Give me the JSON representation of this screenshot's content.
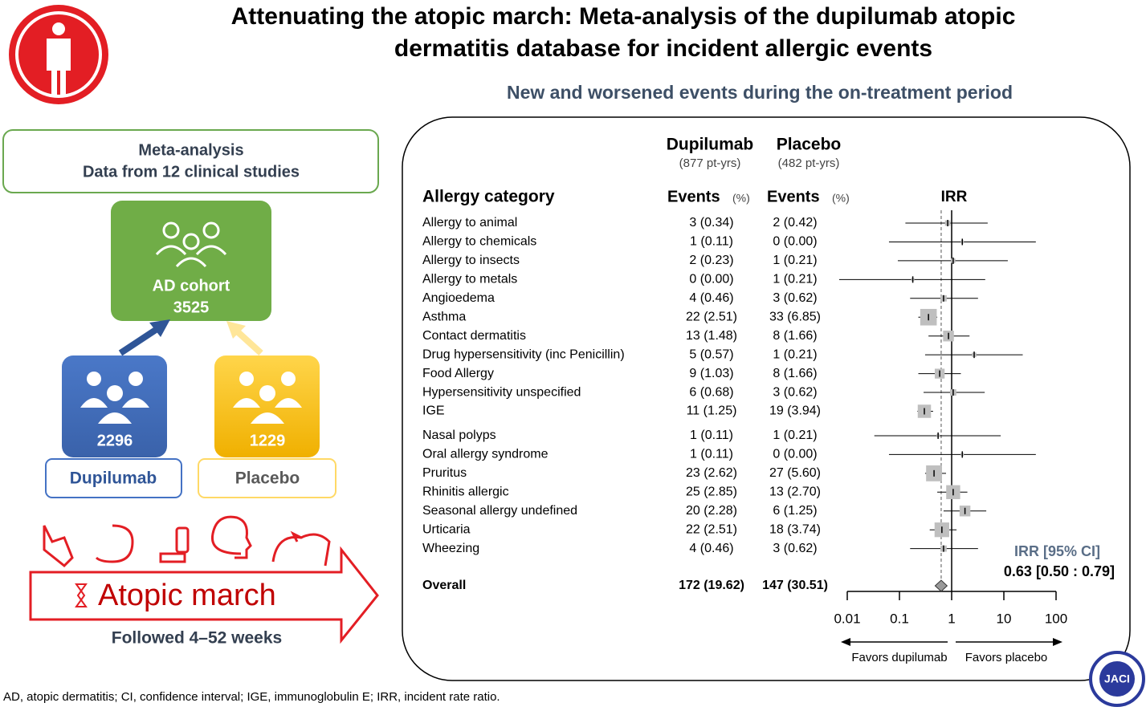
{
  "title": [
    "Attenuating the atopic march: Meta-analysis of the dupilumab atopic",
    "dermatitis database for incident allergic events"
  ],
  "left": {
    "meta_box": [
      "Meta-analysis",
      "Data from 12 clinical studies"
    ],
    "cohort_label": "AD cohort",
    "cohort_n": "3525",
    "dupilumab_n": "2296",
    "placebo_n": "1229",
    "dupilumab_label": "Dupilumab",
    "placebo_label": "Placebo",
    "march_label": "Atopic march",
    "followed": "Followed 4–52 weeks"
  },
  "chart_data": {
    "type": "forest",
    "subtitle": "New and worsened events during the on-treatment period",
    "headers": {
      "dupilumab": "Dupilumab",
      "dupilumab_py": "(877 pt-yrs)",
      "placebo": "Placebo",
      "placebo_py": "(482 pt-yrs)",
      "category": "Allergy category",
      "events": "Events",
      "pct": "(%)",
      "irr": "IRR"
    },
    "categories": [
      "Allergy to animal",
      "Allergy to chemicals",
      "Allergy to insects",
      "Allergy to metals",
      "Angioedema",
      "Asthma",
      "Contact dermatitis",
      "Drug hypersensitivity (inc Penicillin)",
      "Food Allergy",
      "Hypersensitivity unspecified",
      "IGE",
      "Nasal polyps",
      "Oral allergy syndrome",
      "Pruritus",
      "Rhinitis allergic",
      "Seasonal allergy undefined",
      "Urticaria",
      "Wheezing"
    ],
    "dupilumab_events": [
      "3 (0.34)",
      "1 (0.11)",
      "2 (0.23)",
      "0 (0.00)",
      "4 (0.46)",
      "22 (2.51)",
      "13 (1.48)",
      "5 (0.57)",
      "9 (1.03)",
      "6 (0.68)",
      "11 (1.25)",
      "1 (0.11)",
      "1 (0.11)",
      "23 (2.62)",
      "25 (2.85)",
      "20 (2.28)",
      "22 (2.51)",
      "4 (0.46)"
    ],
    "placebo_events": [
      "2 (0.42)",
      "0 (0.00)",
      "1 (0.21)",
      "1 (0.21)",
      "3 (0.62)",
      "33 (6.85)",
      "8 (1.66)",
      "1 (0.21)",
      "8 (1.66)",
      "3 (0.62)",
      "19 (3.94)",
      "1 (0.21)",
      "0 (0.00)",
      "27 (5.60)",
      "13 (2.70)",
      "6 (1.25)",
      "18 (3.74)",
      "3 (0.62)"
    ],
    "values": [
      0.84,
      1.6,
      1.07,
      0.18,
      0.7,
      0.36,
      0.87,
      2.7,
      0.59,
      1.07,
      0.3,
      0.55,
      1.6,
      0.46,
      1.07,
      1.8,
      0.65,
      0.7
    ],
    "ci_low": [
      0.13,
      0.063,
      0.093,
      0.007,
      0.16,
      0.23,
      0.36,
      0.31,
      0.23,
      0.29,
      0.22,
      0.033,
      0.063,
      0.31,
      0.53,
      0.7,
      0.38,
      0.16
    ],
    "ci_high": [
      4.9,
      41,
      11.9,
      4.4,
      3.2,
      0.53,
      2.2,
      23,
      1.5,
      4.3,
      0.44,
      8.7,
      41,
      0.78,
      2.0,
      4.6,
      1.24,
      3.2
    ],
    "weights": [
      1.5,
      0.5,
      1,
      0.5,
      2,
      14,
      6,
      1,
      5,
      2,
      9,
      0.5,
      0.5,
      13,
      10,
      6,
      11,
      2
    ],
    "overall": {
      "label": "Overall",
      "dupilumab": "172 (19.62)",
      "placebo": "147 (30.51)",
      "value": 0.63,
      "ci_low": 0.5,
      "ci_high": 0.79
    },
    "irr_label": "IRR [95% CI]",
    "irr_value_label": "0.63 [0.50 : 0.79]",
    "xlim": [
      0.01,
      100
    ],
    "xticks": [
      0.01,
      0.1,
      1,
      10,
      100
    ],
    "log_x": true,
    "reference": 1,
    "left_arrow": "Favors dupilumab",
    "right_arrow": "Favors placebo",
    "box_color": "#bfbfbf",
    "line_color": "#000000"
  },
  "footnote": "AD, atopic dermatitis; CI, confidence interval; IGE, immunoglobulin E; IRR, incident rate ratio.",
  "logo": "JACI"
}
